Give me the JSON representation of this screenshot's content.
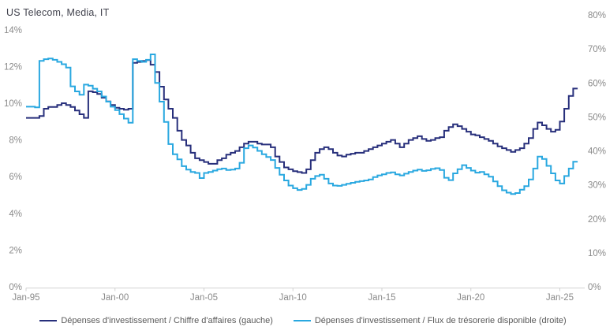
{
  "title": "US Telecom, Media, IT",
  "colors": {
    "navy": "#272f7b",
    "blue": "#29a8e0",
    "axis_line": "#d2d2d2",
    "tick_text": "#8a8a8a",
    "legend_text": "#595959"
  },
  "left_axis": {
    "tick_labels": [
      "14%",
      "12%",
      "10%",
      "8%",
      "6%",
      "4%",
      "2%",
      "0%"
    ],
    "max": 14,
    "min": 0,
    "step": 2
  },
  "right_axis": {
    "tick_labels": [
      "80%",
      "70%",
      "60%",
      "50%",
      "40%",
      "30%",
      "20%",
      "10%",
      "0%"
    ],
    "max": 80,
    "min": 0,
    "step": 10
  },
  "x_axis": {
    "tick_labels": [
      "Jan-95",
      "Jan-00",
      "Jan-05",
      "Jan-10",
      "Jan-15",
      "Jan-20",
      "Jan-25"
    ],
    "tick_years": [
      1995,
      2000,
      2005,
      2010,
      2015,
      2020,
      2025
    ]
  },
  "legend": [
    {
      "label": "Dépenses d'investissement / Chiffre d'affaires (gauche)",
      "color_key": "navy"
    },
    {
      "label": "Dépenses d'investissement / Flux de trésorerie disponible (droite)",
      "color_key": "blue"
    }
  ],
  "chart_data": {
    "type": "line",
    "interpolation": "step-after",
    "x_start": "1995-Q1",
    "x_end": "2025-Q4",
    "frequency": "quarterly",
    "grid": false,
    "legend_position": "bottom-center",
    "series": [
      {
        "name": "Dépenses d'investissement / Chiffre d'affaires (gauche)",
        "axis": "left",
        "ylim": [
          0,
          14
        ],
        "color_key": "navy",
        "values": [
          9.2,
          9.2,
          9.2,
          9.3,
          9.7,
          9.8,
          9.8,
          9.9,
          10.0,
          9.9,
          9.8,
          9.6,
          9.4,
          9.2,
          10.65,
          10.6,
          10.5,
          10.3,
          10.1,
          9.9,
          9.75,
          9.7,
          9.65,
          9.7,
          12.2,
          12.25,
          12.3,
          12.35,
          12.1,
          11.7,
          10.9,
          10.2,
          9.7,
          9.2,
          8.5,
          8.0,
          7.7,
          7.3,
          7.0,
          6.9,
          6.8,
          6.7,
          6.7,
          6.9,
          7.0,
          7.2,
          7.3,
          7.4,
          7.6,
          7.8,
          7.9,
          7.9,
          7.8,
          7.75,
          7.75,
          7.6,
          7.1,
          6.8,
          6.5,
          6.4,
          6.3,
          6.25,
          6.2,
          6.4,
          6.9,
          7.3,
          7.5,
          7.6,
          7.5,
          7.3,
          7.15,
          7.1,
          7.2,
          7.25,
          7.3,
          7.3,
          7.4,
          7.5,
          7.6,
          7.7,
          7.8,
          7.9,
          8.0,
          7.8,
          7.6,
          7.8,
          8.0,
          8.1,
          8.2,
          8.05,
          7.95,
          8.0,
          8.1,
          8.15,
          8.5,
          8.7,
          8.85,
          8.75,
          8.6,
          8.45,
          8.3,
          8.25,
          8.15,
          8.05,
          7.95,
          7.8,
          7.65,
          7.55,
          7.45,
          7.35,
          7.45,
          7.55,
          7.8,
          8.1,
          8.6,
          8.95,
          8.8,
          8.6,
          8.45,
          8.55,
          9.0,
          9.7,
          10.4,
          10.8
        ]
      },
      {
        "name": "Dépenses d'investissement / Flux de trésorerie disponible (droite)",
        "axis": "right",
        "ylim": [
          0,
          80
        ],
        "color_key": "blue",
        "values": [
          53,
          53,
          52.8,
          66.5,
          67,
          67.2,
          66.8,
          66.2,
          65.5,
          64.5,
          59,
          57.5,
          56.5,
          59.5,
          59.2,
          58.3,
          57.5,
          56,
          54.5,
          53,
          52,
          50.8,
          49.5,
          48.3,
          67,
          66.5,
          66.2,
          66.8,
          68.4,
          60,
          54.5,
          48.5,
          42,
          39,
          37.5,
          35.5,
          34.5,
          33.8,
          33.5,
          32,
          33.5,
          33.8,
          34.2,
          34.6,
          34.8,
          34.4,
          34.5,
          34.8,
          36.5,
          40.8,
          41.6,
          41,
          40,
          39,
          38.2,
          37.3,
          35,
          33,
          31.3,
          29.8,
          29,
          28.5,
          28.8,
          30,
          31.8,
          32.6,
          33,
          31.8,
          30.4,
          29.8,
          29.7,
          30,
          30.3,
          30.6,
          30.9,
          31.1,
          31.3,
          31.6,
          32.3,
          32.8,
          33.1,
          33.5,
          33.7,
          33.1,
          32.8,
          33.3,
          33.8,
          34.2,
          34.5,
          34.1,
          34.3,
          34.7,
          34.9,
          34.4,
          32.1,
          31.4,
          33.4,
          34.6,
          35.8,
          35,
          34.2,
          33.6,
          33.8,
          33.1,
          32.4,
          31,
          29.6,
          28.4,
          27.7,
          27.3,
          27.6,
          28.6,
          29.6,
          31.6,
          34.8,
          38.3,
          37.6,
          35.6,
          33.4,
          31.3,
          30.4,
          32.6,
          34.8,
          36.8
        ]
      }
    ]
  }
}
